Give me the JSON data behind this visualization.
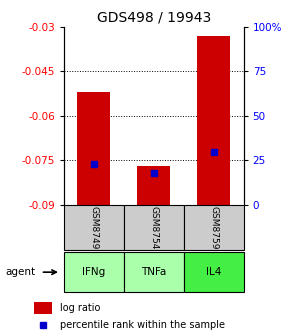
{
  "title": "GDS498 / 19943",
  "samples": [
    "GSM8749",
    "GSM8754",
    "GSM8759"
  ],
  "agents": [
    "IFNg",
    "TNFa",
    "IL4"
  ],
  "log_ratios": [
    -0.052,
    -0.077,
    -0.033
  ],
  "percentile_ranks": [
    23,
    18,
    30
  ],
  "ylim_left": [
    -0.09,
    -0.03
  ],
  "ylim_right": [
    0,
    100
  ],
  "yticks_left": [
    -0.09,
    -0.075,
    -0.06,
    -0.045,
    -0.03
  ],
  "yticks_right": [
    0,
    25,
    50,
    75,
    100
  ],
  "ytick_labels_right": [
    "0",
    "25",
    "50",
    "75",
    "100%"
  ],
  "bar_color": "#cc0000",
  "percentile_color": "#0000cc",
  "bar_width": 0.55,
  "agent_colors": [
    "#aaffaa",
    "#aaffaa",
    "#44ee44"
  ],
  "sample_bg_color": "#cccccc",
  "title_fontsize": 10,
  "tick_fontsize": 7.5,
  "legend_items": [
    "log ratio",
    "percentile rank within the sample"
  ]
}
